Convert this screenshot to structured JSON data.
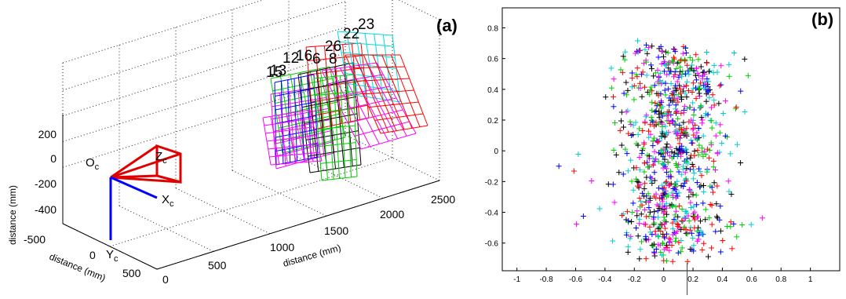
{
  "chart_data": [
    {
      "type": "scatter",
      "panel_label": "(a)",
      "projection": "3d",
      "grid": true,
      "ylabel": "distance (mm)",
      "xlabel": "distance (mm)",
      "zlabel": "distance (mm)",
      "vertical_ticks": [
        "200",
        "0",
        "-200",
        "-400"
      ],
      "depth_ticks": [
        "0",
        "500",
        "1000",
        "1500",
        "2000",
        "2500"
      ],
      "lateral_ticks": [
        "-500",
        "0",
        "500"
      ],
      "camera_labels": {
        "origin_main": "O",
        "origin_sub": "c",
        "x_main": "X",
        "x_sub": "c",
        "y_main": "Y",
        "y_sub": "c",
        "z_main": "Z",
        "z_sub": "c"
      },
      "pose_labels": [
        {
          "text": "23",
          "color": "#00e5e5"
        },
        {
          "text": "22",
          "color": "#000000"
        },
        {
          "text": "16",
          "color": "#000000"
        },
        {
          "text": "26",
          "color": "#cc0000"
        },
        {
          "text": "8",
          "color": "#cc0000"
        },
        {
          "text": "15",
          "color": "#00a000"
        },
        {
          "text": "13",
          "color": "#1111cc"
        },
        {
          "text": "12",
          "color": "#cc0000"
        },
        {
          "text": "6",
          "color": "#cc00cc"
        }
      ],
      "colors": {
        "camera": "#e00000",
        "axis_blue": "#0000ff",
        "pattern_colors": [
          "#ff00ff",
          "#00cc00",
          "#ff0000",
          "#000000",
          "#0000ff",
          "#00dddd"
        ]
      }
    },
    {
      "type": "scatter",
      "panel_label": "(b)",
      "marker": "+",
      "grid": false,
      "xlim": [
        -1.1,
        1.2
      ],
      "ylim": [
        -0.78,
        0.93
      ],
      "x_ticks": [
        "-1",
        "-0.8",
        "-0.6",
        "-0.4",
        "-0.2",
        "0",
        "0.2",
        "0.4",
        "0.6",
        "0.8",
        "1"
      ],
      "y_ticks": [
        "0.8",
        "0.6",
        "0.4",
        "0.2",
        "0",
        "-0.2",
        "-0.4",
        "-0.6"
      ],
      "x_tick_values": [
        -1,
        -0.8,
        -0.6,
        -0.4,
        -0.2,
        0,
        0.2,
        0.4,
        0.6,
        0.8,
        1
      ],
      "y_tick_values": [
        0.8,
        0.6,
        0.4,
        0.2,
        0,
        -0.2,
        -0.4,
        -0.6
      ],
      "cloud": {
        "point_count": 900,
        "x_mean": 0.05,
        "x_std": 0.19,
        "x_range": [
          -0.72,
          0.86
        ],
        "y_mean": 0.0,
        "y_std": 0.33,
        "y_range": [
          -0.72,
          0.88
        ]
      },
      "series_colors": [
        "#ff00ff",
        "#00cc00",
        "#ff0000",
        "#000000",
        "#0000ff",
        "#00cccc"
      ]
    }
  ]
}
